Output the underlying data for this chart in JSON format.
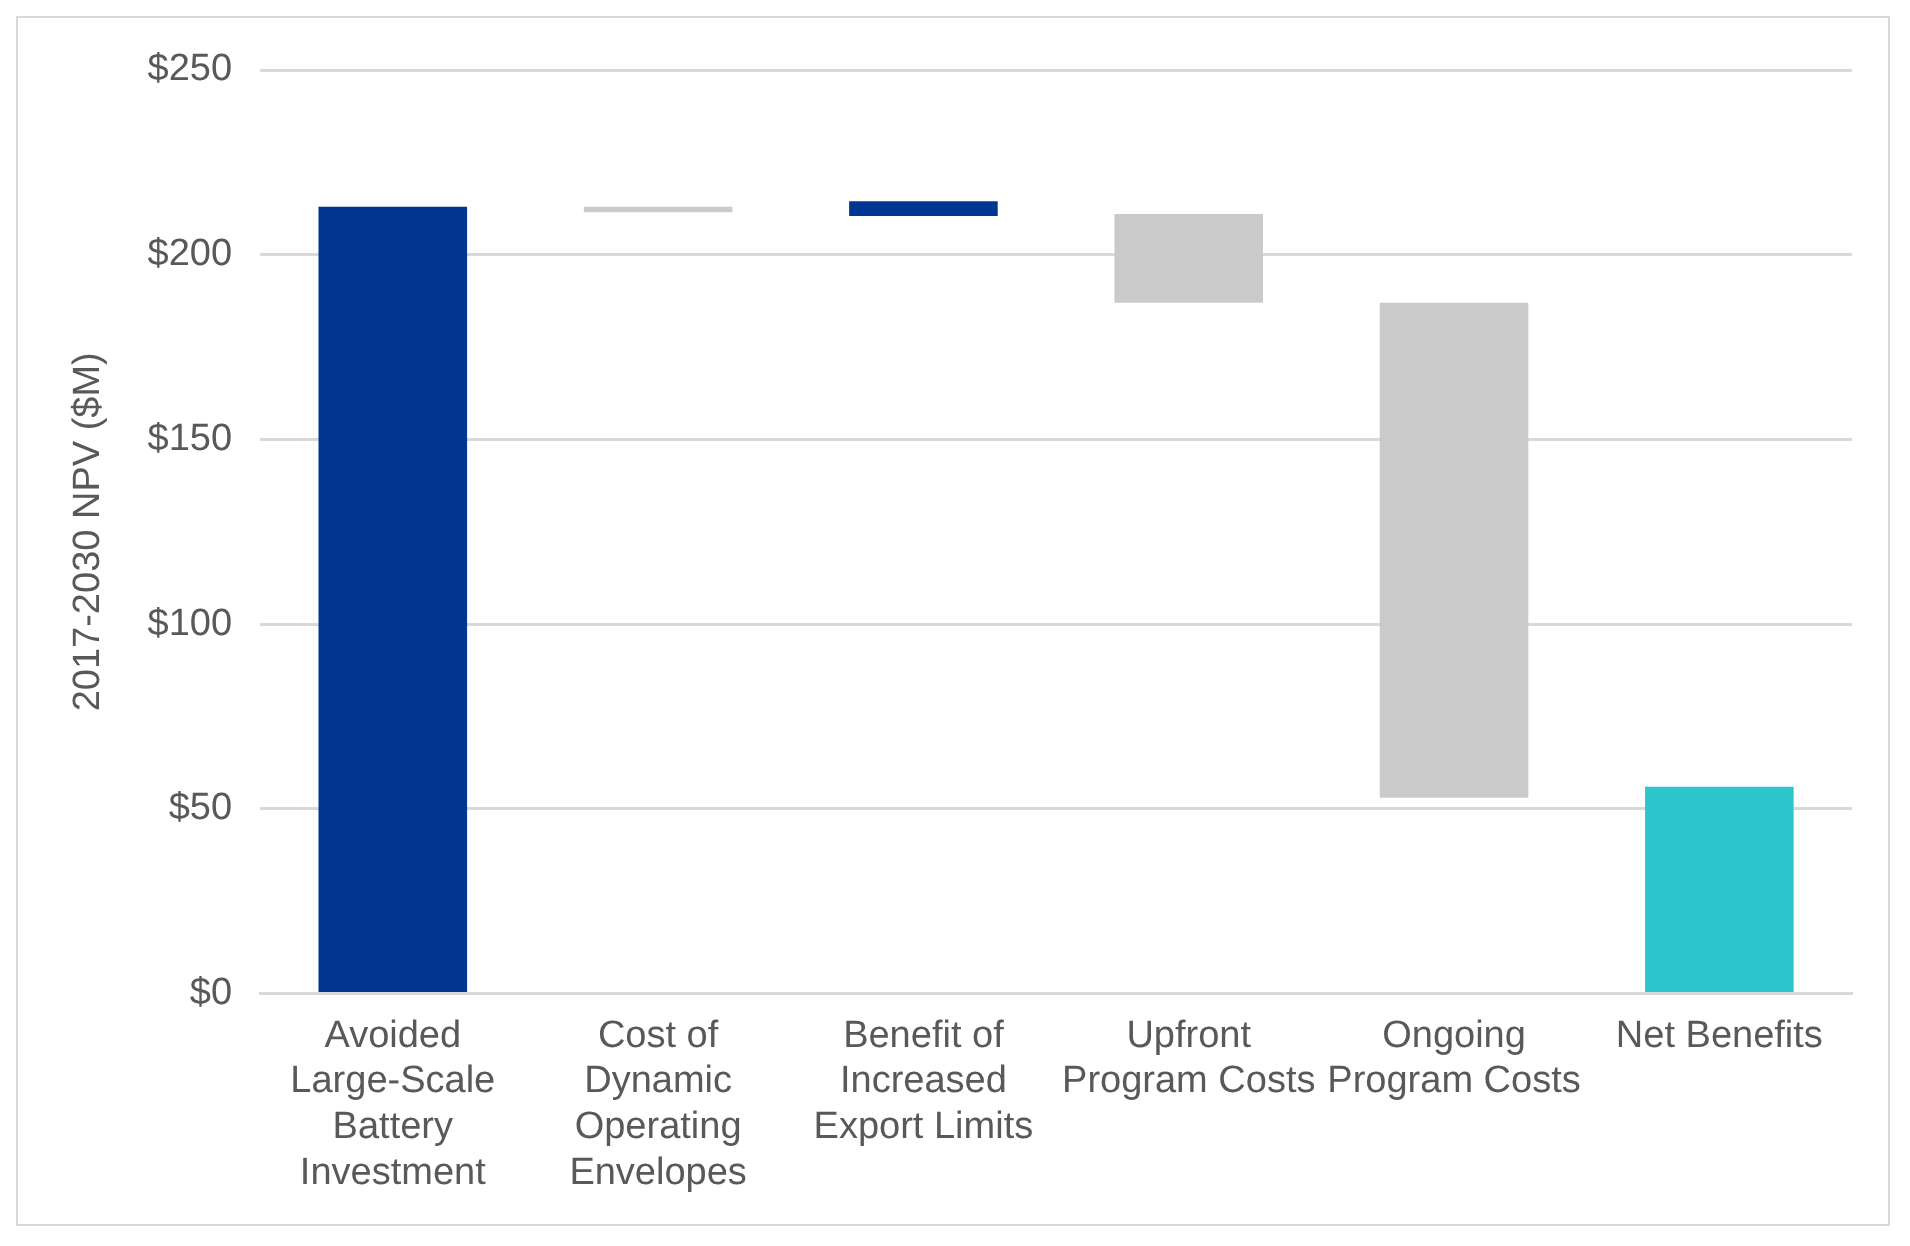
{
  "chart_data": {
    "type": "bar",
    "ylabel": "2017-2030 NPV ($M)",
    "categories": [
      "Avoided Large-Scale Battery Investment",
      "Cost of Dynamic Operating Envelopes",
      "Benefit of Increased Export Limits",
      "Upfront Program Costs",
      "Ongoing Program Costs",
      "Net Benefits"
    ],
    "values": [
      213,
      -1.5,
      4,
      -24,
      -134,
      56
    ],
    "base": [
      0,
      213,
      210.5,
      211,
      187,
      0
    ],
    "colors": [
      "#003591",
      "#cacaca",
      "#003591",
      "#cacaca",
      "#cacaca",
      "#2cc6cc"
    ],
    "ylim": [
      0,
      250
    ],
    "yticks": [
      {
        "value": 0,
        "label": "$0"
      },
      {
        "value": 50,
        "label": "$50"
      },
      {
        "value": 100,
        "label": "$100"
      },
      {
        "value": 150,
        "label": "$150"
      },
      {
        "value": 200,
        "label": "$200"
      },
      {
        "value": 250,
        "label": "$250"
      }
    ],
    "grid": "y",
    "legend": false
  }
}
